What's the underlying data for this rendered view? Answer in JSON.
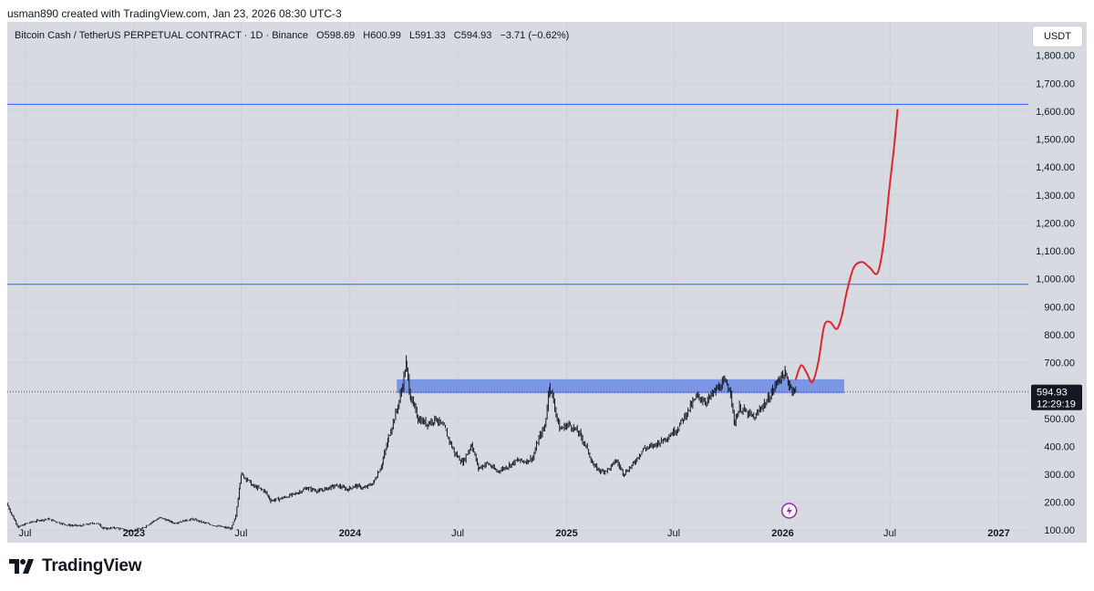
{
  "credit": "usman890 created with TradingView.com, Jan 23, 2026 08:30 UTC-3",
  "symbol": {
    "name": "Bitcoin Cash / TetherUS PERPETUAL CONTRACT · 1D · Binance",
    "open": "O598.69",
    "high": "H600.99",
    "low": "L591.33",
    "close": "C594.93",
    "change": "−3.71 (−0.62%)"
  },
  "currency_button": "USDT",
  "price_label": {
    "price": "594.93",
    "countdown": "12:29:19"
  },
  "brand": "TradingView",
  "colors": {
    "background": "#d7dae0",
    "candles": "#131722",
    "hline": "#2962ff",
    "zone": "#5b7fe6",
    "projection": "#e0262a",
    "price_tag": "#131722"
  },
  "chart_data": {
    "type": "line",
    "xlabel": "",
    "ylabel": "",
    "y_ticks": [
      "1,800.00",
      "1,700.00",
      "1,600.00",
      "1,500.00",
      "1,400.00",
      "1,300.00",
      "1,200.00",
      "1,100.00",
      "1,000.00",
      "900.00",
      "800.00",
      "700.00",
      "600.00",
      "500.00",
      "400.00",
      "300.00",
      "200.00",
      "100.00"
    ],
    "y_tick_values": [
      1800,
      1700,
      1600,
      1500,
      1400,
      1300,
      1200,
      1100,
      1000,
      900,
      800,
      700,
      600,
      500,
      400,
      300,
      200,
      100
    ],
    "ylim": [
      55,
      1920
    ],
    "xlim": [
      "2022-06-01",
      "2027-02-20"
    ],
    "x_ticks": [
      {
        "date": "2022-07-01",
        "label": "Jul",
        "bold": false
      },
      {
        "date": "2023-01-01",
        "label": "2023",
        "bold": true
      },
      {
        "date": "2023-07-01",
        "label": "Jul",
        "bold": false
      },
      {
        "date": "2024-01-01",
        "label": "2024",
        "bold": true
      },
      {
        "date": "2024-07-01",
        "label": "Jul",
        "bold": false
      },
      {
        "date": "2025-01-01",
        "label": "2025",
        "bold": true
      },
      {
        "date": "2025-07-01",
        "label": "Jul",
        "bold": false
      },
      {
        "date": "2026-01-01",
        "label": "2026",
        "bold": true
      },
      {
        "date": "2026-07-01",
        "label": "Jul",
        "bold": false
      },
      {
        "date": "2027-01-01",
        "label": "2027",
        "bold": true
      }
    ],
    "grid": true,
    "current_price": 594.93,
    "horizontal_lines": [
      1625,
      980
    ],
    "zone": {
      "x_start": "2024-03-20",
      "x_end": "2026-04-15",
      "y_low": 590,
      "y_high": 640
    },
    "series": [
      {
        "kind": "price",
        "points": [
          [
            "2022-06-01",
            195
          ],
          [
            "2022-06-12",
            140
          ],
          [
            "2022-06-20",
            110
          ],
          [
            "2022-07-05",
            125
          ],
          [
            "2022-07-25",
            135
          ],
          [
            "2022-08-10",
            140
          ],
          [
            "2022-08-25",
            128
          ],
          [
            "2022-09-10",
            118
          ],
          [
            "2022-10-01",
            115
          ],
          [
            "2022-10-25",
            125
          ],
          [
            "2022-11-05",
            120
          ],
          [
            "2022-11-10",
            105
          ],
          [
            "2022-12-01",
            108
          ],
          [
            "2022-12-25",
            97
          ],
          [
            "2023-01-15",
            105
          ],
          [
            "2023-02-01",
            130
          ],
          [
            "2023-02-15",
            145
          ],
          [
            "2023-03-10",
            125
          ],
          [
            "2023-04-10",
            140
          ],
          [
            "2023-05-01",
            125
          ],
          [
            "2023-06-01",
            110
          ],
          [
            "2023-06-15",
            105
          ],
          [
            "2023-06-22",
            150
          ],
          [
            "2023-06-28",
            250
          ],
          [
            "2023-07-01",
            300
          ],
          [
            "2023-07-10",
            285
          ],
          [
            "2023-07-20",
            260
          ],
          [
            "2023-08-10",
            240
          ],
          [
            "2023-08-20",
            205
          ],
          [
            "2023-09-10",
            215
          ],
          [
            "2023-10-01",
            230
          ],
          [
            "2023-10-20",
            250
          ],
          [
            "2023-11-10",
            240
          ],
          [
            "2023-11-25",
            250
          ],
          [
            "2023-12-10",
            260
          ],
          [
            "2023-12-28",
            245
          ],
          [
            "2024-01-10",
            260
          ],
          [
            "2024-01-25",
            250
          ],
          [
            "2024-02-10",
            270
          ],
          [
            "2024-02-25",
            340
          ],
          [
            "2024-03-05",
            420
          ],
          [
            "2024-03-20",
            530
          ],
          [
            "2024-03-28",
            600
          ],
          [
            "2024-04-05",
            700
          ],
          [
            "2024-04-12",
            580
          ],
          [
            "2024-04-25",
            500
          ],
          [
            "2024-05-10",
            480
          ],
          [
            "2024-05-25",
            500
          ],
          [
            "2024-06-10",
            460
          ],
          [
            "2024-06-25",
            380
          ],
          [
            "2024-07-10",
            340
          ],
          [
            "2024-07-25",
            410
          ],
          [
            "2024-08-05",
            320
          ],
          [
            "2024-08-20",
            340
          ],
          [
            "2024-09-05",
            310
          ],
          [
            "2024-09-25",
            330
          ],
          [
            "2024-10-10",
            350
          ],
          [
            "2024-10-25",
            345
          ],
          [
            "2024-11-05",
            360
          ],
          [
            "2024-11-15",
            430
          ],
          [
            "2024-11-25",
            470
          ],
          [
            "2024-12-03",
            620
          ],
          [
            "2024-12-10",
            560
          ],
          [
            "2024-12-20",
            460
          ],
          [
            "2025-01-05",
            480
          ],
          [
            "2025-01-25",
            440
          ],
          [
            "2025-02-05",
            390
          ],
          [
            "2025-02-15",
            330
          ],
          [
            "2025-03-01",
            310
          ],
          [
            "2025-03-15",
            320
          ],
          [
            "2025-03-25",
            350
          ],
          [
            "2025-04-08",
            300
          ],
          [
            "2025-04-25",
            340
          ],
          [
            "2025-05-10",
            390
          ],
          [
            "2025-05-25",
            400
          ],
          [
            "2025-06-10",
            420
          ],
          [
            "2025-06-25",
            440
          ],
          [
            "2025-07-10",
            470
          ],
          [
            "2025-07-25",
            530
          ],
          [
            "2025-08-10",
            580
          ],
          [
            "2025-08-25",
            560
          ],
          [
            "2025-09-10",
            600
          ],
          [
            "2025-09-25",
            630
          ],
          [
            "2025-10-05",
            600
          ],
          [
            "2025-10-11",
            480
          ],
          [
            "2025-10-20",
            540
          ],
          [
            "2025-11-01",
            520
          ],
          [
            "2025-11-15",
            500
          ],
          [
            "2025-11-25",
            540
          ],
          [
            "2025-12-05",
            560
          ],
          [
            "2025-12-15",
            600
          ],
          [
            "2025-12-25",
            640
          ],
          [
            "2026-01-05",
            660
          ],
          [
            "2026-01-12",
            620
          ],
          [
            "2026-01-23",
            595
          ]
        ]
      },
      {
        "kind": "projection",
        "points": [
          [
            "2026-01-23",
            640
          ],
          [
            "2026-02-01",
            690
          ],
          [
            "2026-02-10",
            665
          ],
          [
            "2026-02-20",
            630
          ],
          [
            "2026-03-02",
            700
          ],
          [
            "2026-03-12",
            830
          ],
          [
            "2026-03-22",
            845
          ],
          [
            "2026-04-02",
            820
          ],
          [
            "2026-04-10",
            860
          ],
          [
            "2026-04-20",
            960
          ],
          [
            "2026-05-01",
            1040
          ],
          [
            "2026-05-15",
            1060
          ],
          [
            "2026-05-28",
            1040
          ],
          [
            "2026-06-10",
            1020
          ],
          [
            "2026-06-20",
            1120
          ],
          [
            "2026-06-30",
            1320
          ],
          [
            "2026-07-08",
            1470
          ],
          [
            "2026-07-14",
            1605
          ]
        ]
      }
    ]
  }
}
